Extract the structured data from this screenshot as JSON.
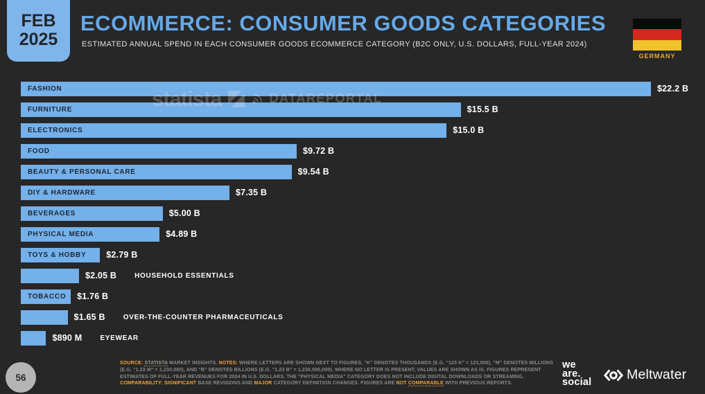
{
  "header": {
    "badge": {
      "line1": "FEB",
      "line2": "2025"
    },
    "title": "ECOMMERCE: CONSUMER GOODS CATEGORIES",
    "subtitle": "ESTIMATED ANNUAL SPEND IN EACH CONSUMER GOODS ECOMMERCE CATEGORY (B2C ONLY, U.S. DOLLARS, FULL-YEAR 2024)",
    "country": "GERMANY"
  },
  "watermark": {
    "statista_text": "statista",
    "datareportal_text": "DATAREPORTAL"
  },
  "chart_data": {
    "type": "bar",
    "orientation": "horizontal",
    "title": "Estimated annual spend in each consumer goods ecommerce category (B2C only, U.S. dollars, full-year 2024)",
    "unit": "U.S. dollars (billions)",
    "xlim_billions": [
      0,
      22.2
    ],
    "grid": false,
    "legend": false,
    "bar_color": "#74b0ea",
    "categories": [
      "FASHION",
      "FURNITURE",
      "ELECTRONICS",
      "FOOD",
      "BEAUTY & PERSONAL CARE",
      "DIY & HARDWARE",
      "BEVERAGES",
      "PHYSICAL MEDIA",
      "TOYS & HOBBY",
      "HOUSEHOLD ESSENTIALS",
      "TOBACCO",
      "OVER-THE-COUNTER PHARMACEUTICALS",
      "EYEWEAR"
    ],
    "values_billions": [
      22.2,
      15.5,
      15.0,
      9.72,
      9.54,
      7.35,
      5.0,
      4.89,
      2.79,
      2.05,
      1.76,
      1.65,
      0.89
    ],
    "value_labels": [
      "$22.2 B",
      "$15.5 B",
      "$15.0 B",
      "$9.72 B",
      "$9.54 B",
      "$7.35 B",
      "$5.00 B",
      "$4.89 B",
      "$2.79 B",
      "$2.05 B",
      "$1.76 B",
      "$1.65 B",
      "$890 M"
    ],
    "label_placement": [
      "inside",
      "inside",
      "inside",
      "inside",
      "inside",
      "inside",
      "inside",
      "inside",
      "inside",
      "outside",
      "inside",
      "outside",
      "outside"
    ]
  },
  "footer": {
    "page_number": "56",
    "note_segments": [
      {
        "text": "SOURCE:",
        "style": "orange-bold"
      },
      {
        "text": " ",
        "style": "plain"
      },
      {
        "text": "STATISTA",
        "style": "link"
      },
      {
        "text": " MARKET INSIGHTS. ",
        "style": "plain"
      },
      {
        "text": "NOTES:",
        "style": "orange-bold"
      },
      {
        "text": " WHERE LETTERS ARE SHOWN NEXT TO FIGURES, \"K\" DENOTES THOUSANDS (E.G. \"123 K\" = 123,000), \"M\" DENOTES MILLIONS (E.G. \"1.23 M\" = 1,230,000), AND \"B\" DENOTES BILLIONS (E.G. \"1.23 B\" = 1,230,000,000). WHERE NO LETTER IS PRESENT, VALUES ARE SHOWN AS IS. FIGURES REPRESENT ESTIMATES OF FULL-YEAR REVENUES FOR 2024 IN U.S. DOLLARS. THE \"PHYSICAL MEDIA\" CATEGORY DOES NOT INCLUDE DIGITAL DOWNLOADS OR STREAMING. ",
        "style": "plain"
      },
      {
        "text": "COMPARABILITY:",
        "style": "orange-bold"
      },
      {
        "text": " ",
        "style": "plain"
      },
      {
        "text": "SIGNIFICANT",
        "style": "orange"
      },
      {
        "text": " BASE REVISIONS AND ",
        "style": "plain"
      },
      {
        "text": "MAJOR",
        "style": "orange"
      },
      {
        "text": " CATEGORY DEFINITION CHANGES. FIGURES ARE ",
        "style": "plain"
      },
      {
        "text": "NOT ",
        "style": "orange"
      },
      {
        "text": "COMPARABLE",
        "style": "orange-link"
      },
      {
        "text": " WITH PREVIOUS REPORTS.",
        "style": "plain"
      }
    ],
    "logos": {
      "we_are_social": [
        "we",
        "are.",
        "social"
      ],
      "meltwater": "Meltwater"
    }
  },
  "colors": {
    "background": "#272727",
    "accent_blue": "#74b0ea",
    "badge_blue": "#7fb5ea",
    "title_blue": "#66a9e8",
    "accent_orange": "#f0a23c",
    "flag_stripes": [
      "#0a0a0a",
      "#d5281e",
      "#efc32a"
    ]
  }
}
